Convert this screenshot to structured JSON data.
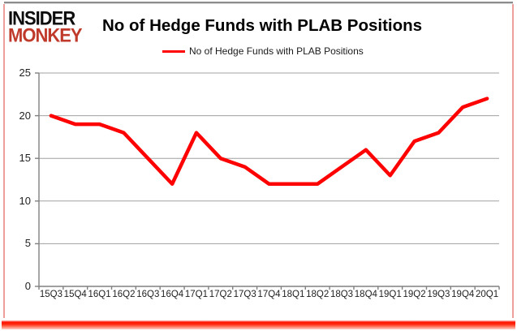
{
  "logo": {
    "line1": "INSIDER",
    "line2": "MONKEY"
  },
  "header": {
    "title": "No of Hedge Funds with PLAB Positions"
  },
  "legend": {
    "label": "No of Hedge Funds with PLAB Positions"
  },
  "chart_data": {
    "type": "line",
    "title": "No of Hedge Funds with PLAB Positions",
    "categories": [
      "15Q3",
      "15Q4",
      "16Q1",
      "16Q2",
      "16Q3",
      "16Q4",
      "17Q1",
      "17Q2",
      "17Q3",
      "17Q4",
      "18Q1",
      "18Q2",
      "18Q3",
      "18Q4",
      "19Q1",
      "19Q2",
      "19Q3",
      "19Q4",
      "20Q1"
    ],
    "series": [
      {
        "name": "No of Hedge Funds with PLAB Positions",
        "values": [
          20,
          19,
          19,
          18,
          15,
          12,
          18,
          15,
          14,
          12,
          12,
          12,
          14,
          16,
          13,
          17,
          18,
          21,
          22
        ],
        "color": "#ff0000"
      }
    ],
    "xlabel": "",
    "ylabel": "",
    "ylim": [
      0,
      25
    ],
    "yticks": [
      0,
      5,
      10,
      15,
      20,
      25
    ],
    "grid": true,
    "legend_position": "top"
  },
  "colors": {
    "series_red": "#ff0000",
    "logo_red": "#c03a2b",
    "axis": "#808080",
    "gridline": "#a0a0a0",
    "text": "#1f1f1f"
  }
}
